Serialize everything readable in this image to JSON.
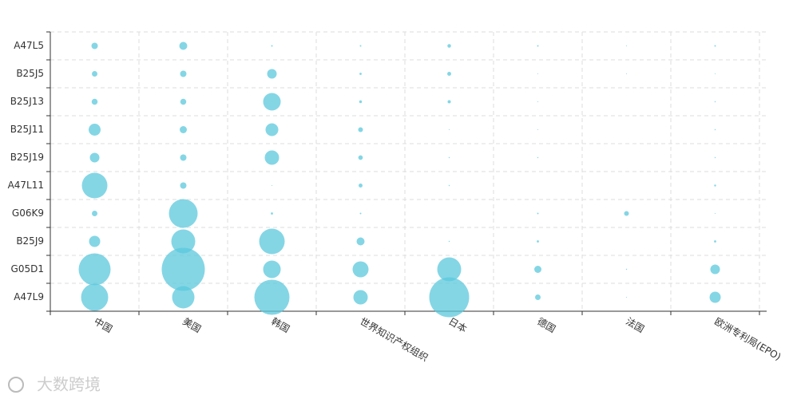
{
  "chart_data": {
    "type": "bubble",
    "categories": [
      "中国",
      "美国",
      "韩国",
      "世界知识产权组织",
      "日本",
      "德国",
      "法国",
      "欧洲专利局(EPO)"
    ],
    "y_categories": [
      "A47L5",
      "B25J5",
      "B25J13",
      "B25J11",
      "B25J19",
      "A47L11",
      "G06K9",
      "B25J9",
      "G05D1",
      "A47L9"
    ],
    "values": [
      [
        16,
        25,
        1,
        1,
        5,
        1,
        0.3,
        1
      ],
      [
        12,
        16,
        36,
        2,
        6,
        0.3,
        0.3,
        0.3
      ],
      [
        14,
        14,
        121,
        3,
        4,
        0.3,
        0,
        0.5
      ],
      [
        56,
        20,
        64,
        9,
        0.3,
        0.3,
        0,
        0.5
      ],
      [
        36,
        16,
        81,
        8,
        0.5,
        0.5,
        0,
        0.5
      ],
      [
        256,
        16,
        0.3,
        6,
        0.5,
        0,
        0,
        1.5
      ],
      [
        12,
        324,
        2,
        1,
        0,
        1,
        9,
        0.3
      ],
      [
        49,
        225,
        256,
        25,
        0.5,
        2,
        0,
        2
      ],
      [
        400,
        729,
        121,
        100,
        225,
        20,
        0.5,
        36
      ],
      [
        289,
        196,
        484,
        81,
        625,
        12,
        0.3,
        49
      ]
    ],
    "color": "#5bc8dc",
    "grid": true,
    "watermark": "大数跨境"
  }
}
